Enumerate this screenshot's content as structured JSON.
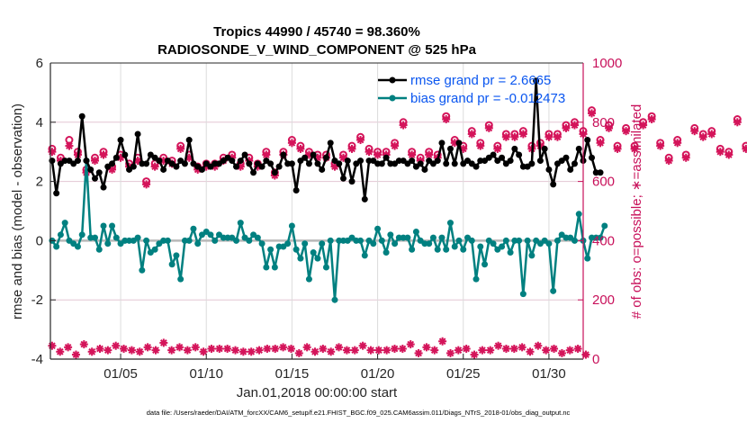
{
  "chart_data": {
    "type": "line",
    "title_line1": "Tropics 44990 / 45740 = 98.360%",
    "title_line2": "RADIOSONDE_V_WIND_COMPONENT @ 525 hPa",
    "xlabel": "Jan.01,2018 00:00:00 start",
    "ylabel_left": "rmse and bias (model - observation)",
    "ylabel_right": "# of obs: o=possible; ∗=assimilated",
    "footer": "data file: /Users/raeder/DAI/ATM_forcXX/CAM6_setup/f.e21.FHIST_BGC.f09_025.CAM6assim.011/Diags_NTrS_2018-01/obs_diag_output.nc",
    "xlim_days": [
      0.9,
      32.0
    ],
    "ylim_left": [
      -4,
      6
    ],
    "ylim_right": [
      0,
      1000
    ],
    "yticks_left": [
      "-4",
      "-2",
      "0",
      "2",
      "4",
      "6"
    ],
    "yticks_left_values": [
      -4,
      -2,
      0,
      2,
      4,
      6
    ],
    "yticks_right": [
      "0",
      "200",
      "400",
      "600",
      "800",
      "1000"
    ],
    "yticks_right_values": [
      0,
      200,
      400,
      600,
      800,
      1000
    ],
    "xticks": [
      "01/05",
      "01/10",
      "01/15",
      "01/20",
      "01/25",
      "01/30"
    ],
    "xticks_days": [
      5,
      10,
      15,
      20,
      25,
      30
    ],
    "grid": true,
    "zero_line": true,
    "legend_position": "top-right",
    "colors": {
      "rmse": "#000000",
      "bias": "#008080",
      "obs": "#d4145a",
      "legend_text": "#0a56f0",
      "zero_line": "#b8b8b8",
      "grid": "#e3c6d3",
      "right_axis": "#c8105a"
    },
    "series": [
      {
        "name": "rmse grand pr = 2.6665",
        "axis": "left",
        "start_day": 1.0,
        "step_days": 0.25,
        "values": [
          2.7,
          1.6,
          2.6,
          2.7,
          2.7,
          2.6,
          2.7,
          4.2,
          2.7,
          2.4,
          2.1,
          2.3,
          1.8,
          2.5,
          2.6,
          2.8,
          3.4,
          2.9,
          2.4,
          2.5,
          3.6,
          2.6,
          2.6,
          2.9,
          2.8,
          2.7,
          2.4,
          2.7,
          2.6,
          2.5,
          2.7,
          2.6,
          3.4,
          2.6,
          2.5,
          2.4,
          2.6,
          2.5,
          2.6,
          2.6,
          2.7,
          2.8,
          2.7,
          2.5,
          2.7,
          2.9,
          2.6,
          2.3,
          2.6,
          2.5,
          2.7,
          2.6,
          2.3,
          2.5,
          2.9,
          2.6,
          2.6,
          1.7,
          2.7,
          2.8,
          2.6,
          2.9,
          2.6,
          2.4,
          2.8,
          3.3,
          2.7,
          2.6,
          2.1,
          2.7,
          2.0,
          2.6,
          2.7,
          1.4,
          2.7,
          2.7,
          2.6,
          2.6,
          2.8,
          2.6,
          2.6,
          2.7,
          2.7,
          2.6,
          2.7,
          2.5,
          2.6,
          2.4,
          2.7,
          2.6,
          2.7,
          3.3,
          2.6,
          3.1,
          2.6,
          3.3,
          2.6,
          2.7,
          2.6,
          2.5,
          2.7,
          2.7,
          2.8,
          2.9,
          2.7,
          2.8,
          2.6,
          2.7,
          3.1,
          2.9,
          2.5,
          2.5,
          2.6,
          5.4,
          2.7,
          3.1,
          2.4,
          1.9,
          2.6,
          2.7,
          2.8,
          2.4,
          2.6,
          3.1,
          2.7,
          3.4,
          2.8,
          2.3,
          2.3
        ],
        "color": "#000000"
      },
      {
        "name": "bias grand pr = -0.012473",
        "axis": "left",
        "start_day": 1.0,
        "step_days": 0.25,
        "values": [
          0.0,
          -0.2,
          0.2,
          0.6,
          0.0,
          -0.1,
          -0.2,
          0.2,
          2.7,
          0.1,
          0.1,
          -0.3,
          0.5,
          -0.1,
          0.5,
          0.1,
          -0.1,
          0.0,
          0.0,
          0.0,
          0.1,
          -1.0,
          0.0,
          -0.4,
          -0.3,
          -0.1,
          0.0,
          0.0,
          -0.8,
          -0.5,
          -1.3,
          0.0,
          0.0,
          0.4,
          -0.1,
          0.2,
          0.3,
          0.2,
          0.0,
          0.2,
          0.1,
          0.1,
          0.1,
          0.0,
          0.6,
          0.1,
          0.0,
          0.2,
          0.1,
          -0.1,
          -0.9,
          -0.3,
          -0.9,
          -0.2,
          -0.2,
          -0.1,
          0.5,
          -0.3,
          -0.6,
          -0.1,
          -1.3,
          -0.4,
          -0.6,
          -0.1,
          -0.9,
          0.0,
          -2.0,
          0.0,
          0.0,
          0.0,
          0.1,
          0.0,
          0.0,
          -0.5,
          0.0,
          -0.1,
          0.4,
          0.0,
          -0.4,
          0.2,
          -0.1,
          0.1,
          0.1,
          0.1,
          -0.3,
          0.3,
          0.0,
          -0.1,
          -0.1,
          0.1,
          -0.3,
          0.1,
          -0.3,
          0.6,
          -0.2,
          0.0,
          -0.3,
          0.1,
          0.0,
          -1.3,
          -0.2,
          -0.8,
          0.0,
          -0.1,
          -0.3,
          -0.2,
          0.0,
          -0.4,
          0.0,
          0.0,
          -1.8,
          0.0,
          -0.5,
          0.0,
          -0.1,
          0.0,
          -0.1,
          -1.7,
          0.0,
          0.2,
          0.1,
          0.1,
          0.0,
          0.9,
          0.0,
          -0.6,
          0.1,
          0.1,
          0.1,
          0.5
        ],
        "color": "#008080"
      },
      {
        "name": "obs possible (o)",
        "axis": "right",
        "start_day": 1.0,
        "step_days": 0.5,
        "values": [
          710,
          680,
          740,
          700,
          640,
          680,
          700,
          650,
          690,
          660,
          680,
          600,
          660,
          680,
          670,
          720,
          690,
          650,
          660,
          660,
          680,
          690,
          660,
          680,
          660,
          700,
          630,
          700,
          740,
          720,
          700,
          690,
          690,
          660,
          690,
          720,
          750,
          710,
          700,
          700,
          730,
          800,
          700,
          680,
          700,
          690,
          820,
          740,
          720,
          770,
          730,
          790,
          720,
          760,
          760,
          770,
          720,
          730,
          760,
          760,
          790,
          800,
          770,
          840,
          740,
          790,
          720,
          780,
          720,
          800,
          820,
          730,
          680,
          740,
          690,
          780,
          760,
          770,
          710,
          700,
          810,
          720,
          780,
          690,
          750,
          730,
          720,
          760,
          780,
          790
        ],
        "color": "#d4145a"
      },
      {
        "name": "obs assimilated (∗)",
        "axis": "right",
        "start_day": 1.0,
        "step_days": 0.5,
        "values": [
          700,
          670,
          720,
          690,
          630,
          670,
          690,
          640,
          680,
          650,
          670,
          590,
          650,
          670,
          660,
          710,
          680,
          640,
          650,
          650,
          670,
          680,
          650,
          670,
          650,
          690,
          620,
          690,
          730,
          710,
          690,
          680,
          680,
          650,
          680,
          710,
          740,
          700,
          690,
          690,
          720,
          790,
          690,
          670,
          690,
          680,
          810,
          730,
          710,
          760,
          720,
          780,
          710,
          750,
          750,
          760,
          710,
          720,
          750,
          750,
          780,
          790,
          760,
          830,
          730,
          780,
          710,
          770,
          710,
          790,
          810,
          720,
          670,
          730,
          680,
          770,
          750,
          760,
          700,
          690,
          800,
          710,
          770,
          680,
          740,
          720,
          710,
          750,
          770,
          780
        ],
        "color": "#d4145a"
      },
      {
        "name": "obs bottom markers",
        "axis": "right",
        "start_day": 1.0,
        "step_days": 0.25,
        "values": [
          45,
          25,
          40,
          15,
          50,
          25,
          35,
          30,
          45,
          35,
          30,
          25,
          40,
          30,
          55,
          30,
          40,
          30,
          40,
          25,
          35,
          35,
          35,
          30,
          25,
          25,
          30,
          35,
          35,
          40,
          35,
          20,
          40,
          25,
          35,
          25,
          40,
          30,
          30,
          45,
          30,
          30,
          30,
          35,
          35,
          50,
          20,
          40,
          30,
          60,
          20,
          30,
          35,
          15,
          30,
          30,
          45,
          35,
          35,
          40,
          25,
          45,
          30,
          35,
          20,
          30,
          35,
          15
        ]
      }
    ]
  }
}
